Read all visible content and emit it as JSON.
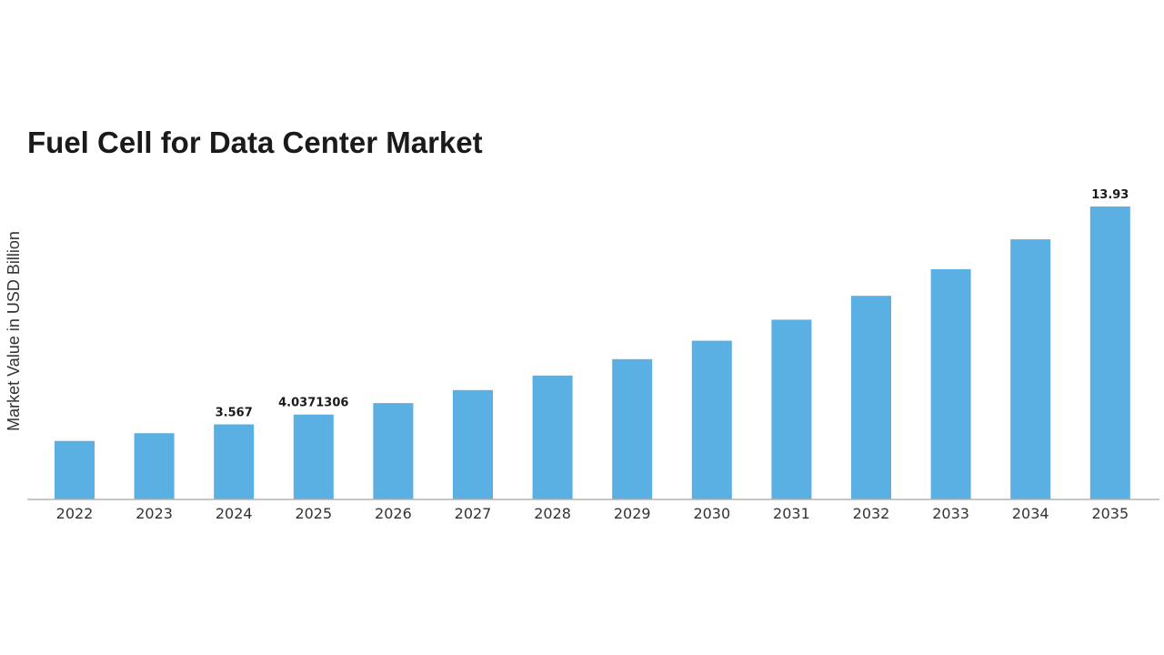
{
  "chart_data": {
    "type": "bar",
    "title": "Fuel Cell for Data Center Market",
    "xlabel": "",
    "ylabel": "Market Value in USD Billion",
    "categories": [
      "2022",
      "2023",
      "2024",
      "2025",
      "2026",
      "2027",
      "2028",
      "2029",
      "2030",
      "2031",
      "2032",
      "2033",
      "2034",
      "2035"
    ],
    "values": [
      2.78,
      3.15,
      3.567,
      4.0371306,
      4.58,
      5.2,
      5.89,
      6.67,
      7.55,
      8.55,
      9.68,
      10.95,
      12.37,
      13.93
    ],
    "data_labels": [
      {
        "category": "2024",
        "text": "3.567"
      },
      {
        "category": "2025",
        "text": "4.0371306"
      },
      {
        "category": "2035",
        "text": "13.93"
      }
    ],
    "ylim": [
      0,
      13.93
    ],
    "grid": false,
    "legend": "none",
    "bar_color": "#5aafe3"
  }
}
